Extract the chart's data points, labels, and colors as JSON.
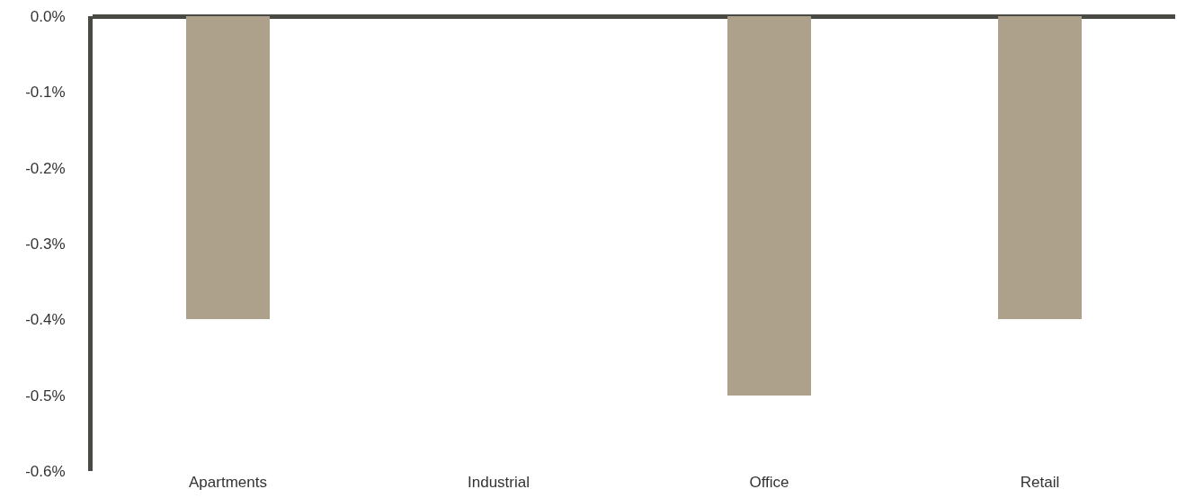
{
  "chart_data": {
    "type": "bar",
    "categories": [
      "Apartments",
      "Industrial",
      "Office",
      "Retail"
    ],
    "values": [
      -0.4,
      0,
      -0.5,
      -0.4
    ],
    "color": "#ada18c",
    "ylim": [
      -0.6,
      0
    ],
    "yticks": [
      {
        "value": 0,
        "label": "0.0%"
      },
      {
        "value": -0.1,
        "label": "-0.1%"
      },
      {
        "value": -0.2,
        "label": "-0.2%"
      },
      {
        "value": -0.3,
        "label": "-0.3%"
      },
      {
        "value": -0.4,
        "label": "-0.4%"
      },
      {
        "value": -0.5,
        "label": "-0.5%"
      },
      {
        "value": -0.6,
        "label": "-0.6%"
      }
    ],
    "grid": false
  }
}
